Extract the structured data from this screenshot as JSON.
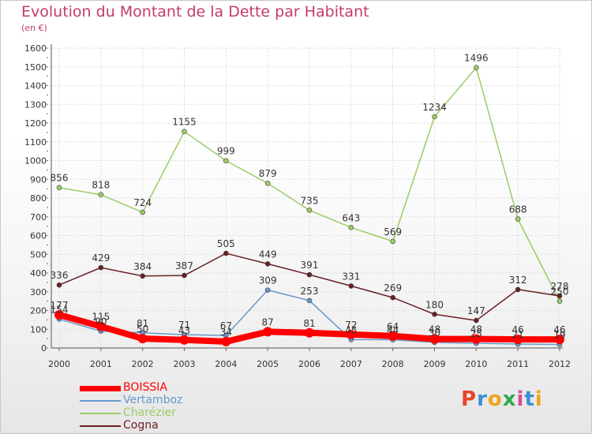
{
  "header": {
    "title": "Evolution du Montant de la Dette par Habitant",
    "subtitle": "(en €)"
  },
  "brand": {
    "letters": [
      "P",
      "r",
      "o",
      "x",
      "i",
      "t",
      "i"
    ],
    "colors": [
      "#e8462b",
      "#3a8fd8",
      "#f0a31c",
      "#2fa84f",
      "#d94b9b",
      "#3a8fd8",
      "#f0a31c"
    ]
  },
  "chart_data": {
    "type": "line",
    "title": "Evolution du Montant de la Dette par Habitant",
    "subtitle": "(en €)",
    "xlabel": "",
    "ylabel": "",
    "ylim": [
      0,
      1600
    ],
    "yticks": [
      "0",
      "100",
      "200",
      "300",
      "400",
      "500",
      "600",
      "700",
      "800",
      "900",
      "1000",
      "1100",
      "1200",
      "1300",
      "1400",
      "1500",
      "1600"
    ],
    "categories": [
      "2000",
      "2001",
      "2002",
      "2003",
      "2004",
      "2005",
      "2006",
      "2007",
      "2008",
      "2009",
      "2010",
      "2011",
      "2012"
    ],
    "grid": true,
    "legend_position": "bottom-left",
    "series": [
      {
        "name": "BOISSIA",
        "color": "#ff0000",
        "values": [
          177,
          115,
          50,
          43,
          34,
          87,
          81,
          72,
          64,
          48,
          48,
          46,
          46
        ],
        "labels": [
          "177",
          "115",
          "50",
          "43",
          "34",
          "87",
          "81",
          "72",
          "64",
          "48",
          "48",
          "46",
          "46"
        ]
      },
      {
        "name": "Vertamboz",
        "color": "#6699cc",
        "values": [
          154,
          90,
          81,
          71,
          67,
          309,
          253,
          45,
          44,
          30,
          25,
          21,
          19
        ],
        "labels": [
          "154",
          "90",
          "81",
          "71",
          "67",
          "309",
          "253",
          "45",
          "44",
          "30",
          "25",
          "21",
          "19"
        ]
      },
      {
        "name": "Charézier",
        "color": "#99cc66",
        "values": [
          856,
          818,
          724,
          1155,
          999,
          879,
          735,
          643,
          569,
          1234,
          1496,
          688,
          250
        ],
        "labels": [
          "856",
          "818",
          "724",
          "1155",
          "999",
          "879",
          "735",
          "643",
          "569",
          "1234",
          "1496",
          "688",
          "250"
        ]
      },
      {
        "name": "Cogna",
        "color": "#6b1f24",
        "values": [
          336,
          429,
          384,
          387,
          505,
          449,
          391,
          331,
          269,
          180,
          147,
          312,
          278
        ],
        "labels": [
          "336",
          "429",
          "384",
          "387",
          "505",
          "449",
          "391",
          "331",
          "269",
          "180",
          "147",
          "312",
          "278"
        ]
      }
    ]
  }
}
